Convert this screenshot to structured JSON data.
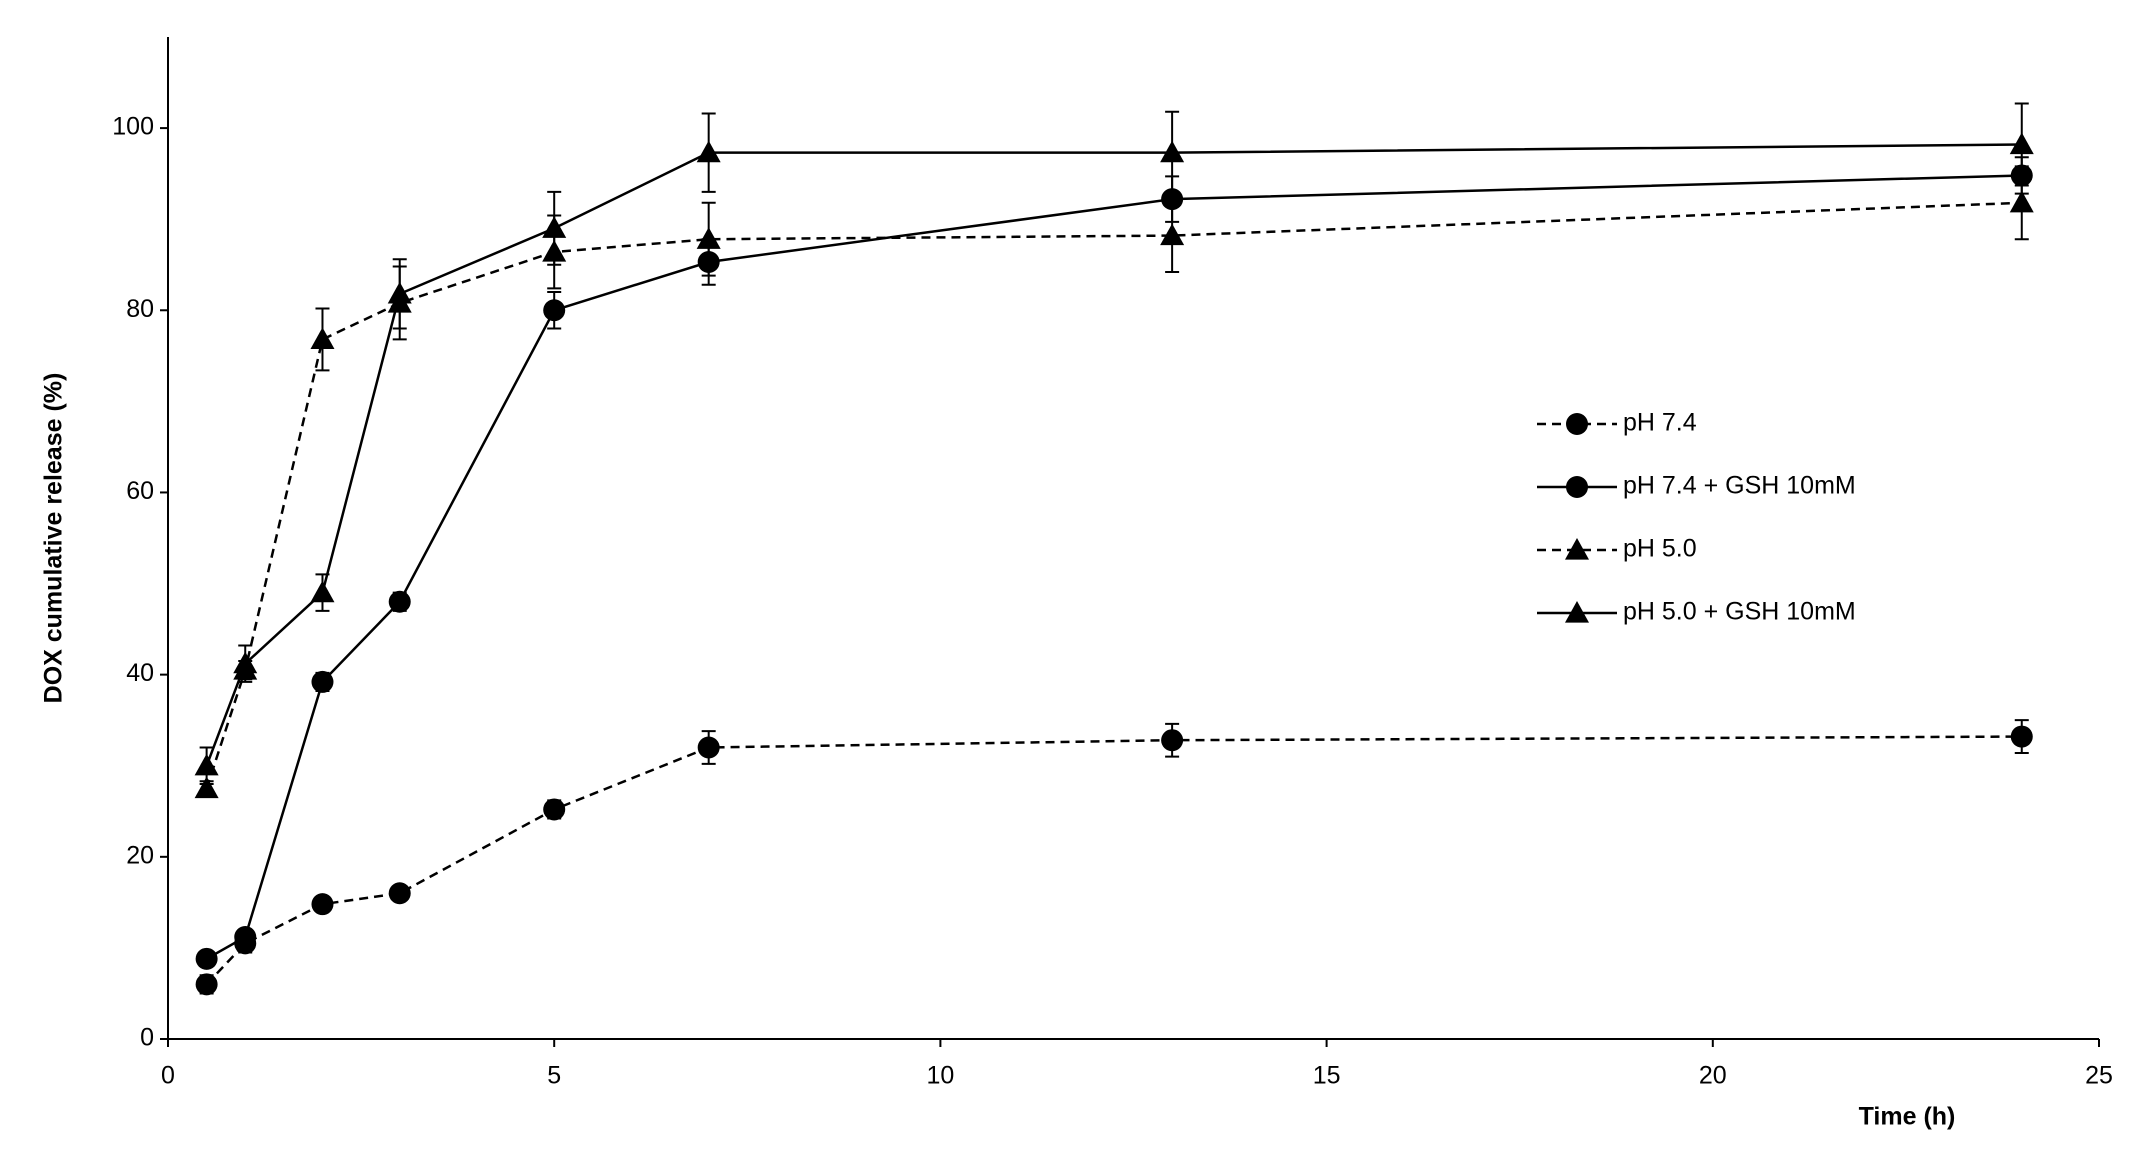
{
  "chart_data": {
    "type": "line",
    "x_label": "Time (h)",
    "y_label": "DOX cumulative release (%)",
    "x": [
      0.5,
      1,
      2,
      3,
      5,
      7,
      13,
      24
    ],
    "series": [
      {
        "name": "pH 7.4",
        "color": "#000000",
        "dashed": true,
        "marker": "circle",
        "values": [
          6,
          10.5,
          14.8,
          16,
          25.2,
          32,
          32.8,
          33.2
        ],
        "errors": [
          1,
          1,
          0.8,
          0.8,
          1,
          1.8,
          1.8,
          1.8
        ]
      },
      {
        "name": "pH 7.4 + GSH 10mM",
        "color": "#000000",
        "dashed": false,
        "marker": "circle",
        "values": [
          8.8,
          11.2,
          39.2,
          48,
          80,
          85.3,
          92.2,
          94.8
        ],
        "errors": [
          0.8,
          0.8,
          1,
          1,
          2,
          2.5,
          2.5,
          2
        ]
      },
      {
        "name": "pH 5.0",
        "color": "#000000",
        "dashed": true,
        "marker": "triangle",
        "values": [
          27.5,
          40.5,
          76.8,
          80.8,
          86.4,
          87.8,
          88.2,
          91.8
        ],
        "errors": [
          0.8,
          1,
          3.4,
          4,
          4,
          4,
          4,
          4
        ]
      },
      {
        "name": "pH 5.0 + GSH 10mM",
        "color": "#000000",
        "dashed": false,
        "marker": "triangle",
        "values": [
          30,
          41.2,
          49,
          81.8,
          89,
          97.3,
          97.3,
          98.2
        ],
        "errors": [
          2,
          2,
          2,
          3.8,
          4,
          4.3,
          4.5,
          4.5
        ]
      }
    ],
    "xlim": [
      0,
      25
    ],
    "xticks": [
      0,
      5,
      10,
      15,
      20,
      25
    ],
    "ylim": [
      0,
      110
    ],
    "yticks": [
      0,
      20,
      40,
      60,
      80,
      100
    ],
    "grid": false,
    "legend": "right"
  }
}
